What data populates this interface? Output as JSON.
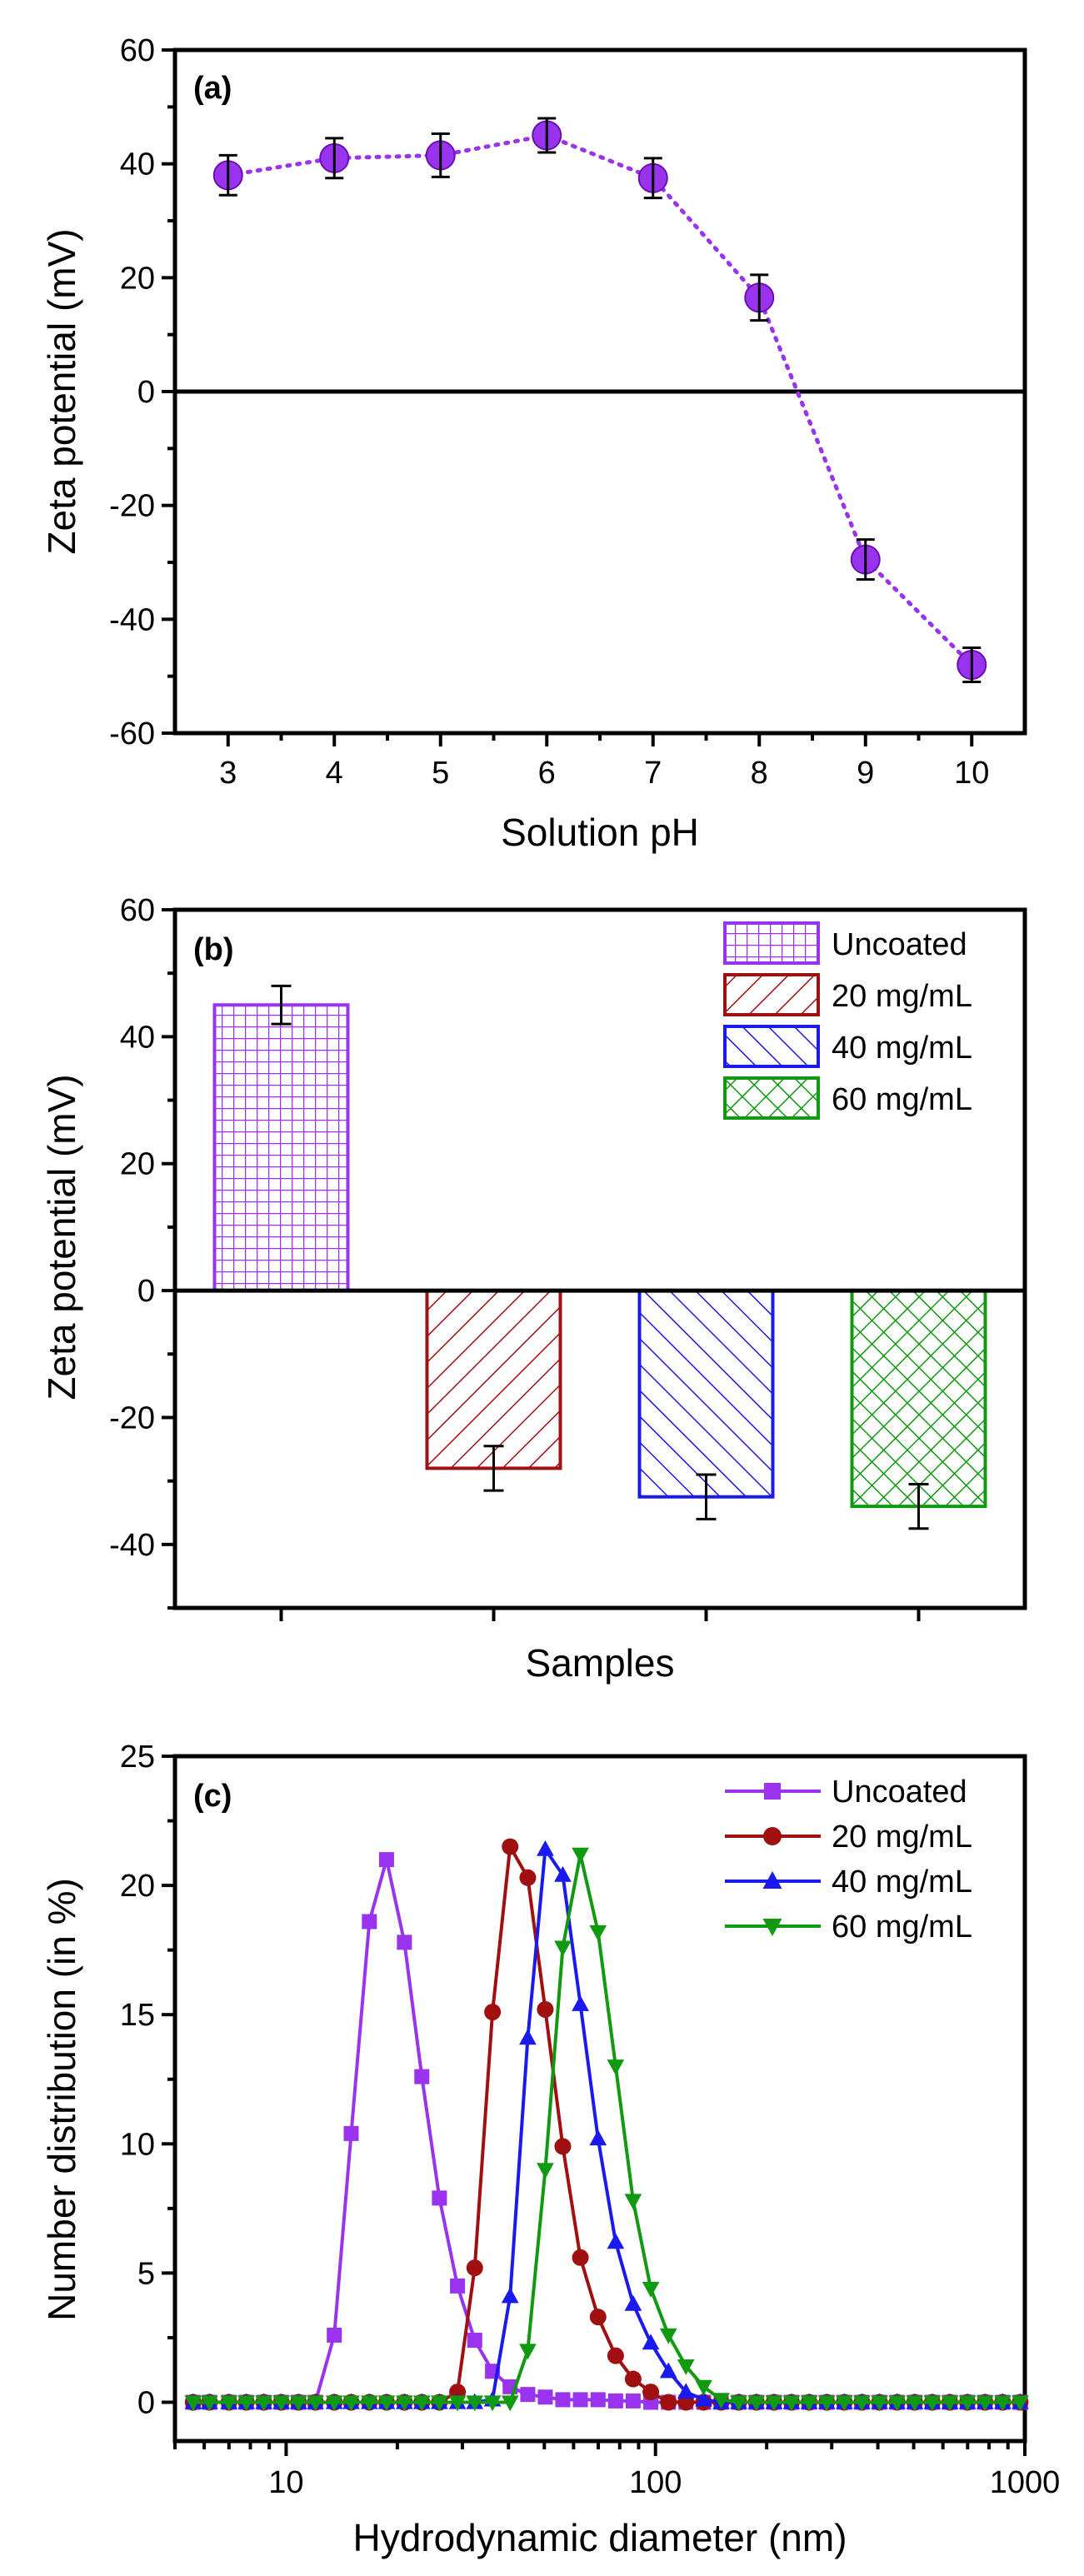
{
  "chart_data": [
    {
      "type": "scatter",
      "panel_label": "(a)",
      "xlabel": "Solution pH",
      "ylabel": "Zeta potential (mV)",
      "xlim": [
        2.5,
        10.5
      ],
      "ylim": [
        -60,
        60
      ],
      "x_ticks": [
        "3",
        "4",
        "5",
        "6",
        "7",
        "8",
        "9",
        "10"
      ],
      "y_ticks": [
        "60",
        "40",
        "20",
        "0",
        "-20",
        "-40",
        "-60"
      ],
      "x_tick_values": [
        3,
        4,
        5,
        6,
        7,
        8,
        9,
        10
      ],
      "y_tick_values": [
        60,
        40,
        20,
        0,
        -20,
        -40,
        -60
      ],
      "zero_line": true,
      "series": [
        {
          "name": "Zeta potential",
          "color": "#9933ee",
          "line_style": "dotted",
          "x": [
            3,
            4,
            5,
            6,
            7,
            8,
            9,
            10
          ],
          "y": [
            38,
            41,
            41.5,
            45,
            37.5,
            16.5,
            -29.5,
            -48
          ],
          "error": [
            3.5,
            3.5,
            3.8,
            3,
            3.5,
            4,
            3.5,
            3
          ]
        }
      ]
    },
    {
      "type": "bar",
      "panel_label": "(b)",
      "xlabel": "Samples",
      "ylabel": "Zeta potential (mV)",
      "ylim": [
        -50,
        60
      ],
      "y_ticks": [
        "60",
        "40",
        "20",
        "0",
        "-20",
        "-40"
      ],
      "y_tick_values": [
        60,
        40,
        20,
        0,
        -20,
        -40
      ],
      "zero_line": true,
      "legend_position": "top-right",
      "categories": [
        "Uncoated",
        "20 mg/mL",
        "40 mg/mL",
        "60 mg/mL"
      ],
      "values": [
        45,
        -28,
        -32.5,
        -34
      ],
      "errors": [
        3,
        3.5,
        3.5,
        3.5
      ],
      "colors": [
        "#9933ee",
        "#a01010",
        "#1a1aee",
        "#119911"
      ],
      "patterns": [
        "grid",
        "diagonal",
        "diagonal",
        "crosshatch"
      ]
    },
    {
      "type": "line",
      "panel_label": "(c)",
      "xlabel": "Hydrodynamic diameter (nm)",
      "ylabel": "Number distribution (in %)",
      "x_scale": "log",
      "xlim": [
        5,
        1000
      ],
      "ylim": [
        -1.5,
        25
      ],
      "x_ticks": [
        "10",
        "100",
        "1000"
      ],
      "x_tick_values": [
        10,
        100,
        1000
      ],
      "y_ticks": [
        "25",
        "20",
        "15",
        "10",
        "5",
        "0"
      ],
      "y_tick_values": [
        25,
        20,
        15,
        10,
        5,
        0
      ],
      "legend_position": "top-right",
      "series": [
        {
          "name": "Uncoated",
          "color": "#9933ee",
          "marker": "square",
          "x": [
            5.6,
            6.2,
            7,
            7.8,
            8.7,
            9.7,
            10.8,
            12,
            13.5,
            15,
            16.8,
            18.7,
            20.9,
            23.3,
            26,
            29.1,
            32.4,
            36.2,
            40.4,
            45.1,
            50.3,
            56.1,
            62.6,
            69.9,
            78,
            87,
            97.1,
            108.4,
            120.9,
            135,
            150.6,
            168,
            187.5,
            209.3,
            233.5,
            260.6,
            290.8,
            324.5,
            362.1,
            404.1,
            450.9,
            503.2,
            561.5,
            626.6,
            699.2,
            780.2,
            870.7,
            971.6
          ],
          "y": [
            0,
            0,
            0,
            0,
            0,
            0,
            0,
            0,
            2.6,
            10.4,
            18.6,
            21,
            17.8,
            12.6,
            7.9,
            4.5,
            2.4,
            1.2,
            0.6,
            0.3,
            0.2,
            0.1,
            0.1,
            0.1,
            0.05,
            0.05,
            0,
            0,
            0,
            0,
            0,
            0,
            0,
            0,
            0,
            0,
            0,
            0,
            0,
            0,
            0,
            0,
            0,
            0,
            0,
            0,
            0,
            0
          ]
        },
        {
          "name": "20 mg/mL",
          "color": "#a01010",
          "marker": "circle",
          "x": [
            5.6,
            6.2,
            7,
            7.8,
            8.7,
            9.7,
            10.8,
            12,
            13.5,
            15,
            16.8,
            18.7,
            20.9,
            23.3,
            26,
            29.1,
            32.4,
            36.2,
            40.4,
            45.1,
            50.3,
            56.1,
            62.6,
            69.9,
            78,
            87,
            97.1,
            108.4,
            120.9,
            135,
            150.6,
            168,
            187.5,
            209.3,
            233.5,
            260.6,
            290.8,
            324.5,
            362.1,
            404.1,
            450.9,
            503.2,
            561.5,
            626.6,
            699.2,
            780.2,
            870.7,
            971.6
          ],
          "y": [
            0,
            0,
            0,
            0,
            0,
            0,
            0,
            0,
            0,
            0,
            0,
            0,
            0,
            0,
            0,
            0.4,
            5.2,
            15.1,
            21.5,
            20.3,
            15.2,
            9.9,
            5.6,
            3.3,
            1.8,
            0.9,
            0.4,
            0,
            0,
            0,
            0,
            0,
            0,
            0,
            0,
            0,
            0,
            0,
            0,
            0,
            0,
            0,
            0,
            0,
            0,
            0,
            0,
            0
          ]
        },
        {
          "name": "40 mg/mL",
          "color": "#1a1aee",
          "marker": "triangle-up",
          "x": [
            5.6,
            6.2,
            7,
            7.8,
            8.7,
            9.7,
            10.8,
            12,
            13.5,
            15,
            16.8,
            18.7,
            20.9,
            23.3,
            26,
            29.1,
            32.4,
            36.2,
            40.4,
            45.1,
            50.3,
            56.1,
            62.6,
            69.9,
            78,
            87,
            97.1,
            108.4,
            120.9,
            135,
            150.6,
            168,
            187.5,
            209.3,
            233.5,
            260.6,
            290.8,
            324.5,
            362.1,
            404.1,
            450.9,
            503.2,
            561.5,
            626.6,
            699.2,
            780.2,
            870.7,
            971.6
          ],
          "y": [
            0,
            0,
            0,
            0,
            0,
            0,
            0,
            0,
            0,
            0,
            0,
            0,
            0,
            0,
            0,
            0,
            0,
            0.1,
            4.1,
            14.1,
            21.4,
            20.4,
            15.4,
            10.2,
            6.2,
            3.8,
            2.3,
            1.2,
            0.4,
            0.1,
            0,
            0,
            0,
            0,
            0,
            0,
            0,
            0,
            0,
            0,
            0,
            0,
            0,
            0,
            0,
            0,
            0,
            0
          ]
        },
        {
          "name": "60 mg/mL",
          "color": "#119911",
          "marker": "triangle-down",
          "x": [
            5.6,
            6.2,
            7,
            7.8,
            8.7,
            9.7,
            10.8,
            12,
            13.5,
            15,
            16.8,
            18.7,
            20.9,
            23.3,
            26,
            29.1,
            32.4,
            36.2,
            40.4,
            45.1,
            50.3,
            56.1,
            62.6,
            69.9,
            78,
            87,
            97.1,
            108.4,
            120.9,
            135,
            150.6,
            168,
            187.5,
            209.3,
            233.5,
            260.6,
            290.8,
            324.5,
            362.1,
            404.1,
            450.9,
            503.2,
            561.5,
            626.6,
            699.2,
            780.2,
            870.7,
            971.6
          ],
          "y": [
            0,
            0,
            0,
            0,
            0,
            0,
            0,
            0,
            0,
            0,
            0,
            0,
            0,
            0,
            0,
            0,
            0,
            0,
            0,
            2,
            9,
            17.6,
            21.2,
            18.2,
            13,
            7.8,
            4.4,
            2.6,
            1.4,
            0.6,
            0.1,
            0,
            0,
            0,
            0,
            0,
            0,
            0,
            0,
            0,
            0,
            0,
            0,
            0,
            0,
            0,
            0,
            0
          ]
        }
      ]
    }
  ]
}
